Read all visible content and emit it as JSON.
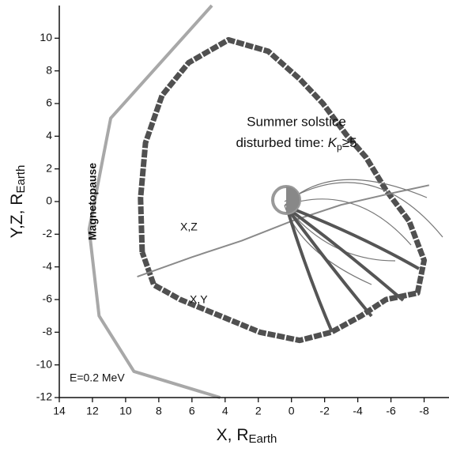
{
  "chart_data": {
    "type": "line",
    "xlabel": "X, R",
    "xlabel_sub": "Earth",
    "ylabel": "Y,Z, R",
    "ylabel_sub": "Earth",
    "annotation": {
      "line1": "Summer solstice",
      "line2": "disturbed time: ",
      "k": "K",
      "sub": "p",
      "cond": "≥5"
    },
    "energy_label": "E=0.2 MeV",
    "xlim": [
      14,
      -9.5
    ],
    "ylim": [
      -12,
      12
    ],
    "xticks": [
      14,
      12,
      10,
      8,
      6,
      4,
      2,
      0,
      -2,
      -4,
      -6,
      -8
    ],
    "yticks": [
      -12,
      -10,
      -8,
      -6,
      -4,
      -2,
      0,
      2,
      4,
      6,
      8,
      10
    ],
    "series": [
      {
        "name": "X,Y",
        "color": "#505050",
        "x": [
          9.0,
          9.1,
          8.8,
          7.8,
          6.2,
          3.8,
          1.4,
          -0.5,
          -1.9,
          -3.3,
          -4.5,
          -5.7,
          -7.1,
          -8.0,
          -7.6,
          -5.7,
          -4.2,
          -2.4,
          -0.5,
          1.9,
          4.3,
          6.7,
          8.3,
          9.0
        ],
        "y": [
          -3.1,
          0.2,
          3.6,
          6.5,
          8.5,
          9.9,
          9.2,
          7.5,
          6.0,
          4.1,
          2.7,
          0.7,
          -1.2,
          -3.6,
          -5.6,
          -6.0,
          -7.0,
          -8.0,
          -8.5,
          -8.0,
          -7.0,
          -6.0,
          -5.1,
          -3.1
        ]
      },
      {
        "name": "X,Z",
        "color": "#8a8a8a",
        "x": [
          9.3,
          6,
          3,
          0,
          -3,
          -6,
          -8.3
        ],
        "y": [
          -4.6,
          -3.4,
          -2.4,
          -1.2,
          -0.2,
          0.5,
          1.0
        ]
      },
      {
        "name": "Magnetopause",
        "color": "#a8a8a8",
        "x": [
          4.8,
          10.9,
          12.2,
          11.6,
          9.5,
          4.3
        ],
        "y": [
          12,
          5.1,
          -1.7,
          -7,
          -10.4,
          -12
        ]
      }
    ]
  }
}
